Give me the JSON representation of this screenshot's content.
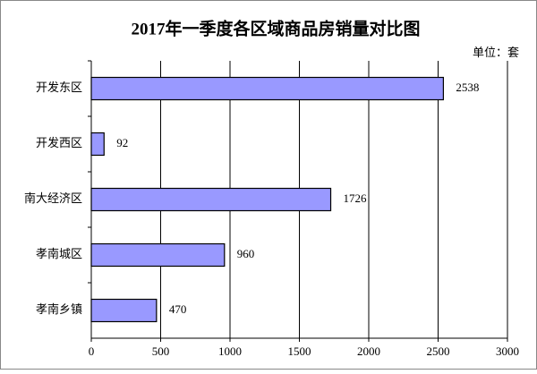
{
  "chart_data": {
    "type": "bar",
    "orientation": "horizontal",
    "title": "2017年一季度各区域商品房销量对比图",
    "unit_label": "单位：套",
    "categories": [
      "开发东区",
      "开发西区",
      "南大经济区",
      "孝南城区",
      "孝南乡镇"
    ],
    "values": [
      2538,
      92,
      1726,
      960,
      470
    ],
    "color": "#9999ff",
    "xlim": [
      0,
      3000
    ],
    "xticks": [
      0,
      500,
      1000,
      1500,
      2000,
      2500,
      3000
    ],
    "grid": true
  }
}
